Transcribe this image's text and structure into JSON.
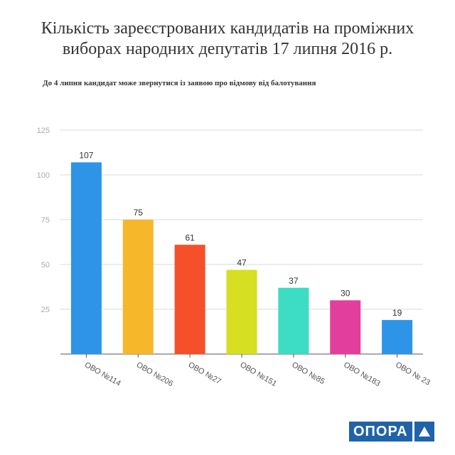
{
  "title": "Кількість зареєстрованих кандидатів на проміжних виборах народних депутатів 17 липня 2016 р.",
  "subtitle": "До 4 липня кандидат може звернутися із  заявою про відмову від балотування",
  "logo": {
    "text": "ОПОРА",
    "icon": "triangle-icon",
    "color": "#1f63a8"
  },
  "chart_data": {
    "type": "bar",
    "categories": [
      "ОВО №114",
      "ОВО №206",
      "ОВО №27",
      "ОВО №151",
      "ОВО №85",
      "ОВО №183",
      "ОВО № 23"
    ],
    "values": [
      107,
      75,
      61,
      47,
      37,
      30,
      19
    ],
    "colors": [
      "#2e94e8",
      "#f6b82a",
      "#f5502a",
      "#d6df21",
      "#3ddcc4",
      "#e23e9e",
      "#2e94e8"
    ],
    "yticks": [
      25,
      50,
      75,
      100,
      125
    ],
    "ylim": [
      0,
      125
    ],
    "grid": true,
    "legend": "none",
    "data_labels": true
  }
}
